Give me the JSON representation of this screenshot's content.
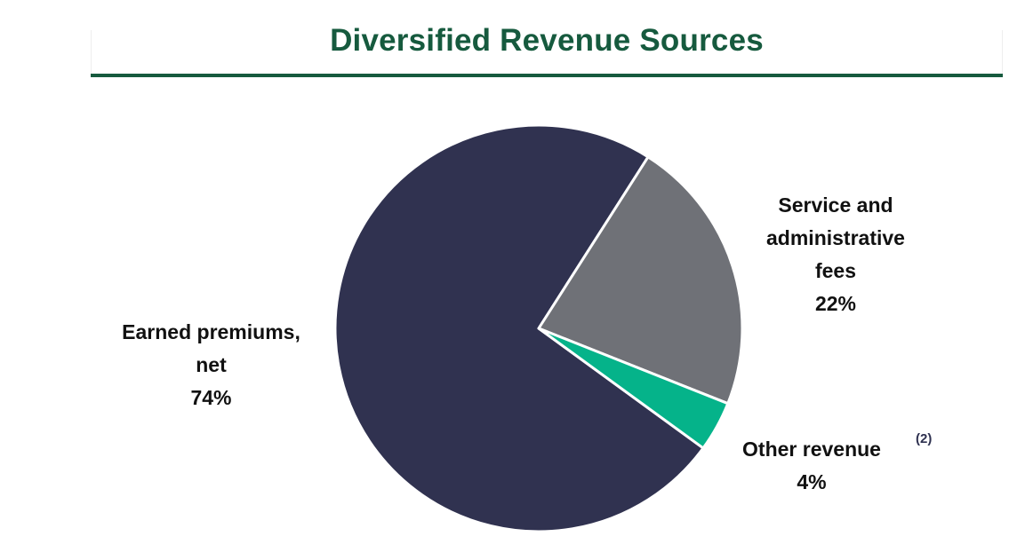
{
  "title": "Diversified Revenue Sources",
  "chart_data": {
    "type": "pie",
    "title": "Diversified Revenue Sources",
    "slices": [
      {
        "label_lines": [
          "Earned premiums,",
          "net"
        ],
        "pct_label": "74%",
        "value": 74,
        "color": "#303250"
      },
      {
        "label_lines": [
          "Service and",
          "administrative",
          "fees"
        ],
        "pct_label": "22%",
        "value": 22,
        "color": "#6f7177"
      },
      {
        "label_lines": [
          "Other revenue"
        ],
        "pct_label": "4%",
        "value": 4,
        "color": "#05b38a",
        "footnote": "(2)"
      }
    ]
  }
}
